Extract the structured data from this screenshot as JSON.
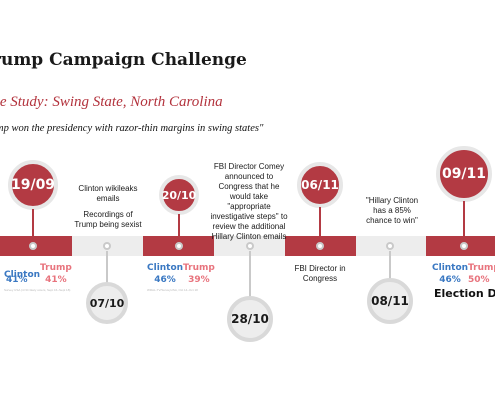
{
  "slide": {
    "title": "rump Campaign Challenge",
    "subtitle": "se Study: Swing State, North Carolina",
    "quote": "mp won the presidency with razor-thin margins in swing states\""
  },
  "events": {
    "e1909": {
      "date": "19/09",
      "poll": {
        "clinton_label": "Clinton",
        "clinton_pct": "41%",
        "trump_label": "Trump",
        "trump_pct": "41%"
      },
      "source": "Survey USA (4 NC likely voters, Sept 16–Sept 18)"
    },
    "e0710": {
      "date": "07/10",
      "note_1": "Clinton wikileaks emails",
      "note_2": "Recordings of Trump being sexist"
    },
    "e2010": {
      "date": "20/10",
      "poll": {
        "clinton_label": "Clinton",
        "clinton_pct": "46%",
        "trump_label": "Trump",
        "trump_pct": "39%"
      },
      "source": "WRAL-TV/SurveyUSA, Oct 14–Oct 18"
    },
    "e2810": {
      "date": "28/10",
      "note": "FBI Director Comey announced to Congress that he would take \"appropriate investigative steps\" to review the additional Hillary Clinton emails"
    },
    "e0611": {
      "date": "06/11",
      "note": "FBI Director in Congress"
    },
    "e0811": {
      "date": "08/11",
      "note": "\"Hillary Clinton has a 85% chance to win\""
    },
    "e0911": {
      "date": "09/11",
      "poll": {
        "clinton_label": "Clinton",
        "clinton_pct": "46%",
        "trump_label": "Trump",
        "trump_pct": "50%"
      },
      "label": "Election Day"
    }
  },
  "colors": {
    "accent_red": "#b33a43",
    "clinton_blue": "#3a78c2",
    "trump_pink": "#e8737d",
    "neutral_grey": "#ededed"
  }
}
